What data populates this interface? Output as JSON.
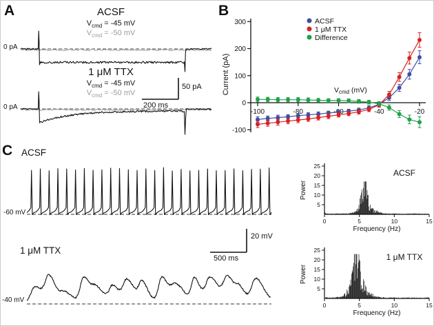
{
  "panels": {
    "A": "A",
    "B": "B",
    "C": "C"
  },
  "panelA": {
    "acsf_title": "ACSF",
    "ttx_title": "1 μM TTX",
    "v_sym": "V",
    "v_sub": "cmd",
    "vcmd45_rest": " = -45 mV",
    "vcmd50_rest": " = -50 mV",
    "zero_pa": "0 pA",
    "scale_v": "50 pA",
    "scale_h": "200 ms",
    "colors": {
      "active_trace": "#111111",
      "control_trace": "#9b9b9b",
      "dash": "#444444"
    }
  },
  "panelC": {
    "acsf_title": "ACSF",
    "ttx_title": "1 μM TTX",
    "baseline_acsf": "-60 mV",
    "baseline_ttx": "-40 mV",
    "scale_v": "20 mV",
    "scale_h": "500 ms"
  },
  "chart_data": [
    {
      "id": "iv-curve",
      "type": "scatter",
      "title": "",
      "xlabel_main": "V",
      "xlabel_sub": "cmd",
      "xlabel_rest": " (mV)",
      "ylabel": "Current (pA)",
      "xlim": [
        -104,
        -16
      ],
      "ylim": [
        -110,
        310
      ],
      "xticks": [
        -100,
        -80,
        -60,
        -40,
        -20
      ],
      "yticks": [
        -100,
        0,
        100,
        200,
        300
      ],
      "x": [
        -100,
        -95,
        -90,
        -85,
        -80,
        -75,
        -70,
        -65,
        -60,
        -55,
        -50,
        -45,
        -40,
        -35,
        -30,
        -25,
        -20
      ],
      "series": [
        {
          "name": "ACSF",
          "color": "#3f4ea4",
          "values": [
            -62,
            -58,
            -55,
            -52,
            -48,
            -45,
            -42,
            -38,
            -35,
            -31,
            -27,
            -19,
            -6,
            18,
            55,
            105,
            168
          ],
          "err": [
            10,
            9,
            9,
            8,
            8,
            8,
            8,
            7,
            7,
            7,
            7,
            8,
            8,
            10,
            13,
            18,
            24
          ]
        },
        {
          "name": "1 μM TTX",
          "color": "#d92121",
          "values": [
            -80,
            -76,
            -72,
            -68,
            -64,
            -60,
            -55,
            -50,
            -45,
            -40,
            -34,
            -25,
            -8,
            30,
            95,
            165,
            232
          ],
          "err": [
            12,
            11,
            11,
            10,
            10,
            9,
            9,
            9,
            8,
            8,
            8,
            8,
            9,
            12,
            16,
            22,
            27
          ]
        },
        {
          "name": "Difference",
          "color": "#1fa04a",
          "values": [
            12,
            12,
            11,
            11,
            11,
            10,
            9,
            8,
            8,
            7,
            5,
            2,
            -4,
            -18,
            -42,
            -62,
            -72
          ],
          "err": [
            9,
            8,
            8,
            8,
            8,
            8,
            7,
            7,
            7,
            7,
            7,
            7,
            8,
            10,
            13,
            16,
            20
          ]
        }
      ],
      "legend": [
        "ACSF",
        "1 μM TTX",
        "Difference"
      ],
      "legend_pos": "top-center",
      "grid": false
    },
    {
      "id": "psd-acsf",
      "type": "bar",
      "title": "ACSF",
      "xlabel": "Frequency (Hz)",
      "ylabel": "Power",
      "xlim": [
        0,
        15
      ],
      "ylim": [
        0,
        25
      ],
      "xticks": [
        0,
        5,
        10,
        15
      ],
      "yticks": [
        5,
        10,
        15,
        20,
        25
      ],
      "peak_hz": 5.7,
      "peak_power": 17,
      "bandwidth": 0.4,
      "broad_power": 4.5,
      "broad_bw": 1.1,
      "noise_floor": 0.5,
      "seed": 7
    },
    {
      "id": "psd-ttx",
      "type": "bar",
      "title": "1 μM TTX",
      "xlabel": "Frequency (Hz)",
      "ylabel": "Power",
      "xlim": [
        0,
        15
      ],
      "ylim": [
        0,
        25
      ],
      "xticks": [
        0,
        5,
        10,
        15
      ],
      "yticks": [
        5,
        10,
        15,
        20,
        25
      ],
      "peak_hz": 4.6,
      "peak_power": 23,
      "bandwidth": 0.55,
      "broad_power": 7,
      "broad_bw": 1.3,
      "noise_floor": 0.6,
      "seed": 13
    },
    {
      "id": "voltage-clamp-traces",
      "type": "line",
      "traces": [
        {
          "name": "ACSF Vcmd -45 mV",
          "color": "#111111",
          "baseline_pA": 0,
          "steady_state_pA": -38
        },
        {
          "name": "ACSF Vcmd -50 mV",
          "color": "#9b9b9b",
          "baseline_pA": 0,
          "steady_state_pA": 0
        },
        {
          "name": "TTX Vcmd -45 mV",
          "color": "#111111",
          "baseline_pA": 0,
          "steady_state_pA": -6
        },
        {
          "name": "TTX Vcmd -50 mV",
          "color": "#9b9b9b",
          "baseline_pA": 0,
          "steady_state_pA": 0
        }
      ],
      "scalebar": {
        "vertical": "50 pA",
        "horizontal": "200 ms"
      }
    },
    {
      "id": "current-clamp-traces",
      "type": "line",
      "traces": [
        {
          "name": "ACSF",
          "baseline_mV": -60,
          "spike_count": 28
        },
        {
          "name": "1 μM TTX",
          "baseline_mV": -40,
          "oscillation_freq_hz": 4.6
        }
      ],
      "scalebar": {
        "vertical": "20 mV",
        "horizontal": "500 ms"
      }
    }
  ]
}
